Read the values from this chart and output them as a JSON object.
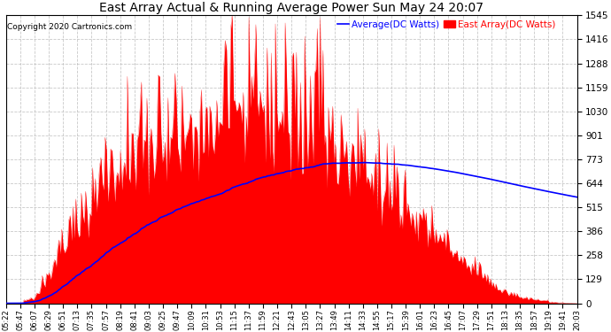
{
  "title": "East Array Actual & Running Average Power Sun May 24 20:07",
  "copyright": "Copyright 2020 Cartronics.com",
  "legend_avg": "Average(DC Watts)",
  "legend_east": "East Array(DC Watts)",
  "ymax": 1545.1,
  "ymin": 0.0,
  "yticks": [
    0.0,
    128.8,
    257.5,
    386.3,
    515.0,
    643.8,
    772.6,
    901.3,
    1030.1,
    1158.8,
    1287.6,
    1416.3,
    1545.1
  ],
  "bar_color": "#FF0000",
  "avg_color": "#0000FF",
  "background_color": "#FFFFFF",
  "grid_color": "#BBBBBB",
  "title_color": "#000000",
  "copyright_color": "#000000",
  "legend_avg_color": "#0000FF",
  "legend_east_color": "#FF0000",
  "xtick_labels": [
    "05:22",
    "05:47",
    "06:07",
    "06:29",
    "06:51",
    "07:13",
    "07:35",
    "07:57",
    "08:19",
    "08:41",
    "09:03",
    "09:25",
    "09:47",
    "10:09",
    "10:31",
    "10:53",
    "11:15",
    "11:37",
    "11:59",
    "12:21",
    "12:43",
    "13:05",
    "13:27",
    "13:49",
    "14:11",
    "14:33",
    "14:55",
    "15:17",
    "15:39",
    "16:01",
    "16:23",
    "16:45",
    "17:07",
    "17:29",
    "17:51",
    "18:13",
    "18:35",
    "18:57",
    "19:19",
    "19:41",
    "20:03"
  ],
  "n_points": 410
}
